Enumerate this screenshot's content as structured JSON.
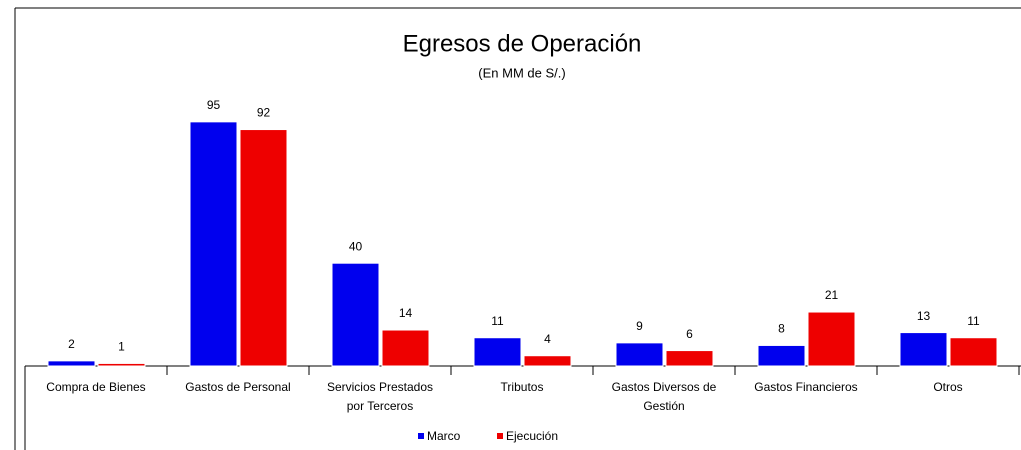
{
  "chart_data": {
    "type": "bar",
    "title": "Egresos de Operación",
    "subtitle": "(En MM de S/.)",
    "categories": [
      "Compra de Bienes",
      "Gastos de Personal",
      "Servicios Prestados por Terceros",
      "Tributos",
      "Gastos Diversos de Gestión",
      "Gastos Financieros",
      "Otros"
    ],
    "series": [
      {
        "name": "Marco",
        "color": "#0000ee",
        "values": [
          2,
          95,
          40,
          11,
          9,
          8,
          13
        ]
      },
      {
        "name": "Ejecución",
        "color": "#ee0000",
        "values": [
          1,
          92,
          14,
          4,
          6,
          21,
          11
        ]
      }
    ],
    "ylim": [
      0,
      100
    ]
  }
}
